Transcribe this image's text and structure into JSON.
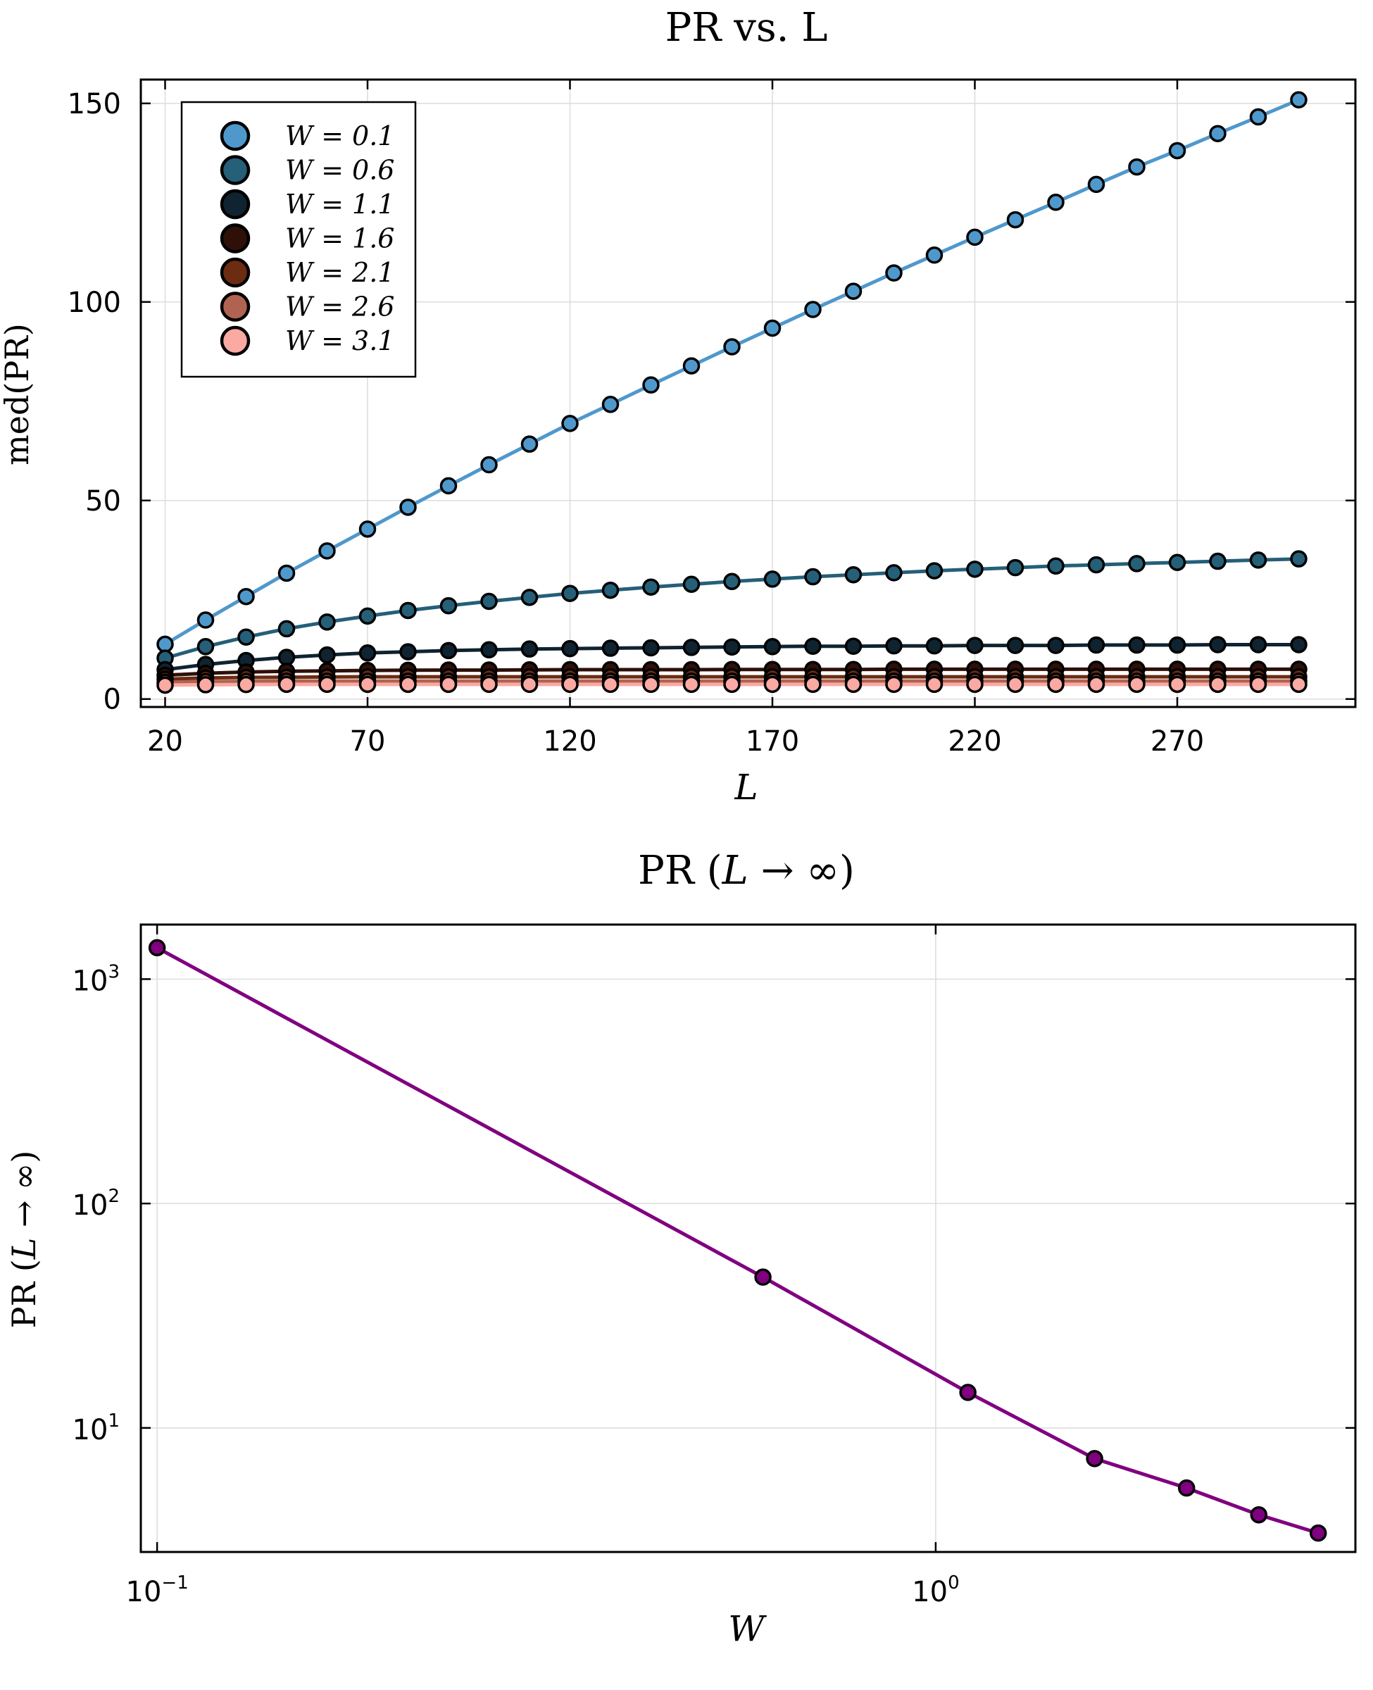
{
  "chart_data": [
    {
      "type": "line",
      "title": "PR vs. L",
      "xlabel": "L",
      "ylabel": "med(PR)",
      "xscale": "linear",
      "yscale": "linear",
      "xlim": [
        14,
        314
      ],
      "ylim": [
        -2,
        156
      ],
      "xticks": [
        20,
        70,
        120,
        170,
        220,
        270
      ],
      "yticks": [
        0,
        50,
        100,
        150
      ],
      "grid": true,
      "legend_position": "top-left",
      "x": [
        20,
        30,
        40,
        50,
        60,
        70,
        80,
        90,
        100,
        110,
        120,
        130,
        140,
        150,
        160,
        170,
        180,
        190,
        200,
        210,
        220,
        230,
        240,
        250,
        260,
        270,
        280,
        290,
        300
      ],
      "series": [
        {
          "name": "W = 0.1",
          "color": "#4f98cc",
          "values": [
            13.8,
            19.9,
            25.8,
            31.7,
            37.3,
            42.8,
            48.3,
            53.7,
            59.0,
            64.2,
            69.4,
            74.2,
            79.1,
            83.9,
            88.7,
            93.4,
            98.1,
            102.7,
            107.3,
            111.8,
            116.3,
            120.7,
            125.1,
            129.6,
            134.0,
            138.1,
            142.4,
            146.6,
            150.9
          ]
        },
        {
          "name": "W = 0.6",
          "color": "#255f78",
          "values": [
            10.3,
            13.2,
            15.6,
            17.7,
            19.4,
            20.9,
            22.3,
            23.5,
            24.6,
            25.6,
            26.6,
            27.4,
            28.2,
            28.9,
            29.6,
            30.2,
            30.8,
            31.3,
            31.8,
            32.3,
            32.7,
            33.1,
            33.5,
            33.8,
            34.1,
            34.4,
            34.7,
            35.0,
            35.3
          ]
        },
        {
          "name": "W = 1.1",
          "color": "#0f2330",
          "values": [
            7.4,
            8.7,
            9.7,
            10.5,
            11.1,
            11.6,
            11.9,
            12.2,
            12.4,
            12.6,
            12.7,
            12.8,
            12.9,
            13.0,
            13.1,
            13.2,
            13.3,
            13.3,
            13.4,
            13.4,
            13.5,
            13.5,
            13.5,
            13.6,
            13.6,
            13.6,
            13.7,
            13.7,
            13.7
          ]
        },
        {
          "name": "W = 1.6",
          "color": "#2e1008",
          "values": [
            6.0,
            6.5,
            6.8,
            7.0,
            7.1,
            7.2,
            7.25,
            7.3,
            7.3,
            7.35,
            7.4,
            7.4,
            7.4,
            7.4,
            7.45,
            7.45,
            7.45,
            7.45,
            7.5,
            7.5,
            7.5,
            7.5,
            7.5,
            7.5,
            7.5,
            7.5,
            7.5,
            7.5,
            7.5
          ]
        },
        {
          "name": "W = 2.1",
          "color": "#6b2c12",
          "values": [
            5.0,
            5.3,
            5.45,
            5.5,
            5.55,
            5.6,
            5.6,
            5.6,
            5.6,
            5.6,
            5.6,
            5.6,
            5.6,
            5.6,
            5.6,
            5.6,
            5.6,
            5.6,
            5.6,
            5.6,
            5.6,
            5.6,
            5.6,
            5.6,
            5.6,
            5.6,
            5.6,
            5.6,
            5.6
          ]
        },
        {
          "name": "W = 2.6",
          "color": "#b16351",
          "values": [
            4.2,
            4.4,
            4.45,
            4.5,
            4.5,
            4.5,
            4.5,
            4.5,
            4.5,
            4.5,
            4.5,
            4.5,
            4.5,
            4.5,
            4.5,
            4.5,
            4.5,
            4.5,
            4.5,
            4.5,
            4.5,
            4.5,
            4.5,
            4.5,
            4.5,
            4.5,
            4.5,
            4.5,
            4.5
          ]
        },
        {
          "name": "W = 3.1",
          "color": "#fba9a3",
          "values": [
            3.5,
            3.6,
            3.65,
            3.7,
            3.7,
            3.7,
            3.7,
            3.7,
            3.7,
            3.7,
            3.7,
            3.7,
            3.7,
            3.7,
            3.7,
            3.7,
            3.7,
            3.7,
            3.7,
            3.7,
            3.7,
            3.7,
            3.7,
            3.7,
            3.7,
            3.7,
            3.7,
            3.7,
            3.7
          ]
        }
      ]
    },
    {
      "type": "line",
      "title": "PR (L → ∞)",
      "xlabel": "W",
      "ylabel": "PR (L → ∞)",
      "xscale": "log",
      "yscale": "log",
      "xlim": [
        0.0953,
        3.46
      ],
      "ylim": [
        2.8,
        1750
      ],
      "xticks": [
        0.1,
        1
      ],
      "xtick_labels": [
        {
          "base": "10",
          "exp": "−1"
        },
        {
          "base": "10",
          "exp": "0"
        }
      ],
      "yticks": [
        10,
        100,
        1000
      ],
      "ytick_labels": [
        {
          "base": "10",
          "exp": "1"
        },
        {
          "base": "10",
          "exp": "2"
        },
        {
          "base": "10",
          "exp": "3"
        }
      ],
      "grid": true,
      "series": [
        {
          "name": "PR (L → ∞)",
          "color": "#800080",
          "x": [
            0.1,
            0.6,
            1.1,
            1.6,
            2.1,
            2.6,
            3.1
          ],
          "values": [
            1380,
            47,
            14.4,
            7.3,
            5.4,
            4.1,
            3.4
          ]
        }
      ]
    }
  ]
}
